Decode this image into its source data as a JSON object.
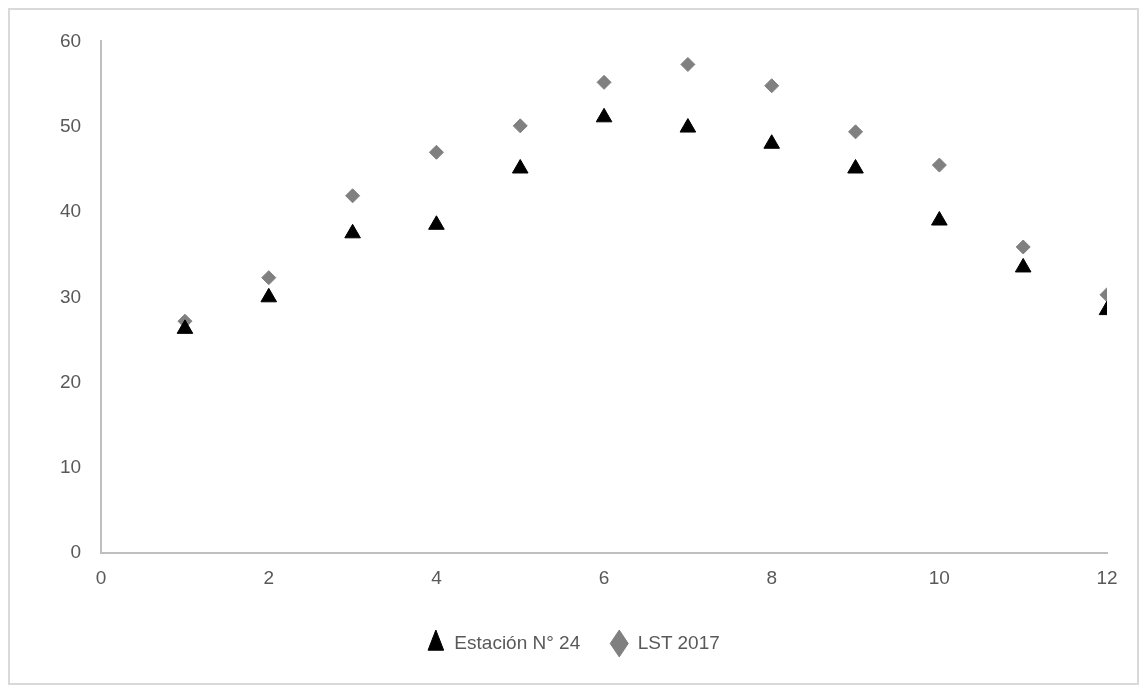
{
  "chart_data": {
    "type": "scatter",
    "x": [
      1,
      2,
      3,
      4,
      5,
      6,
      7,
      8,
      9,
      10,
      11,
      12
    ],
    "series": [
      {
        "name": "Estación N° 24",
        "color": "#000000",
        "marker": "triangle",
        "values": [
          26.3,
          30.0,
          37.5,
          38.5,
          45.1,
          51.1,
          49.9,
          48.0,
          45.1,
          39.0,
          33.5,
          28.5
        ]
      },
      {
        "name": "LST 2017",
        "color": "#808080",
        "marker": "diamond",
        "values": [
          27.2,
          32.3,
          41.9,
          47.0,
          50.1,
          55.2,
          57.3,
          54.8,
          49.4,
          45.5,
          35.9,
          30.3
        ]
      }
    ],
    "xlim": [
      0,
      12
    ],
    "xticks": [
      0,
      2,
      4,
      6,
      8,
      10,
      12
    ],
    "ylim": [
      0,
      60
    ],
    "yticks": [
      0,
      10,
      20,
      30,
      40,
      50,
      60
    ],
    "grid": false,
    "legend": "bottom"
  }
}
